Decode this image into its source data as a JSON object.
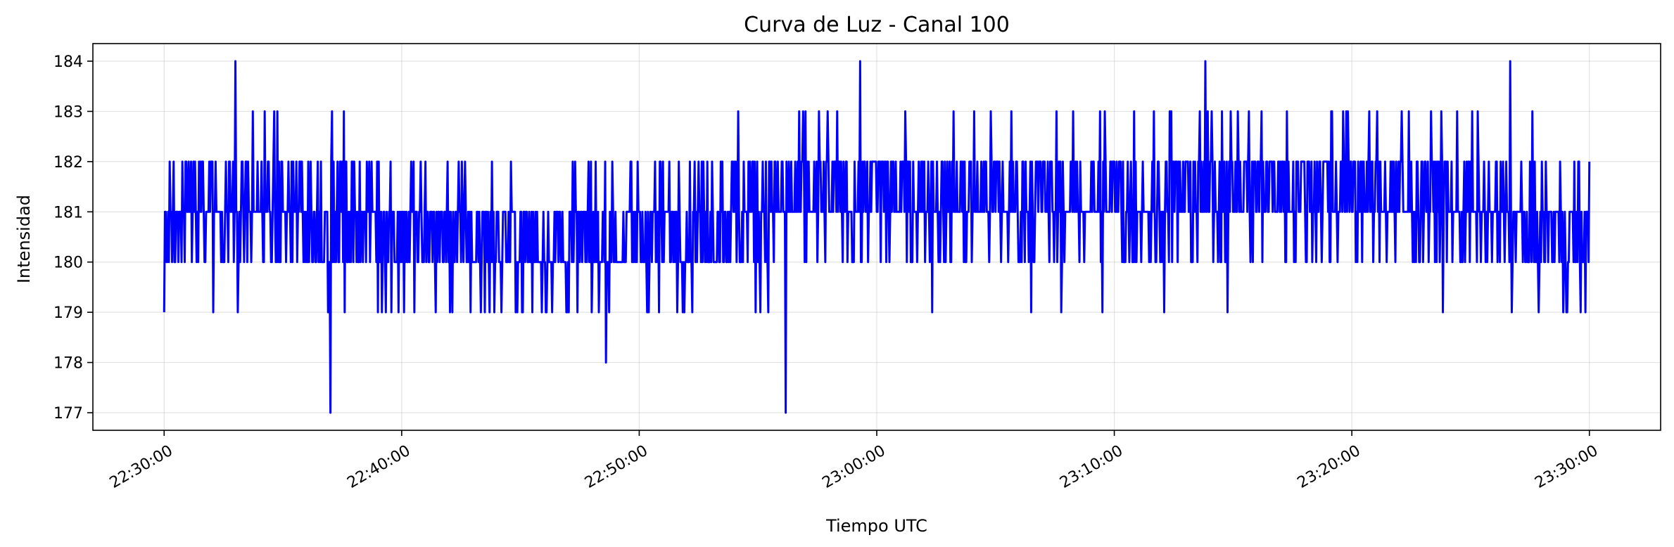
{
  "chart_data": {
    "type": "line",
    "title": "Curva de Luz - Canal 100",
    "xlabel": "Tiempo UTC",
    "ylabel": "Intensidad",
    "x_start": "22:30:00",
    "x_end": "23:30:00",
    "xlim": [
      "22:27:00",
      "23:33:00"
    ],
    "ylim": [
      176.65,
      184.35
    ],
    "x_ticks": [
      "22:30:00",
      "22:40:00",
      "22:50:00",
      "23:00:00",
      "23:10:00",
      "23:20:00",
      "23:30:00"
    ],
    "y_ticks": [
      177,
      178,
      179,
      180,
      181,
      182,
      183,
      184
    ],
    "grid": true,
    "sample_interval_seconds": 2,
    "series": [
      {
        "color": "#0000ff",
        "min": 177,
        "max": 184,
        "notable_points": [
          {
            "x": "22:33:00",
            "y": 184
          },
          {
            "x": "22:37:00",
            "y": 177
          },
          {
            "x": "22:56:10",
            "y": 177
          },
          {
            "x": "23:13:50",
            "y": 184
          },
          {
            "x": "23:26:40",
            "y": 184
          }
        ]
      }
    ]
  }
}
